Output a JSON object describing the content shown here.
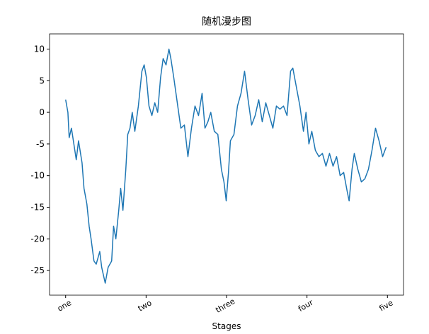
{
  "chart_data": {
    "type": "line",
    "title": "随机漫步图",
    "xlabel": "Stages",
    "x": [
      0,
      7,
      11,
      18,
      24,
      33,
      40,
      51,
      57,
      66,
      73,
      79,
      88,
      95,
      106,
      112,
      123,
      132,
      143,
      149,
      156,
      165,
      171,
      178,
      187,
      193,
      200,
      207,
      215,
      226,
      237,
      244,
      251,
      259,
      268,
      277,
      286,
      295,
      303,
      312,
      321,
      327,
      336,
      347,
      358,
      369,
      380,
      391,
      402,
      413,
      424,
      433,
      442,
      451,
      462,
      473,
      484,
      492,
      499,
      506,
      512,
      523,
      534,
      545,
      556,
      567,
      578,
      589,
      600,
      611,
      622,
      633,
      644,
      655,
      666,
      677,
      688,
      699,
      706,
      717,
      728,
      739,
      747,
      756,
      765,
      776,
      787,
      798,
      809,
      820,
      831,
      842,
      853,
      864,
      875,
      881,
      890,
      897,
      908,
      919,
      930,
      941,
      952,
      963,
      974,
      985,
      996
    ],
    "series": [
      {
        "color": "#1f77b4",
        "values": [
          2,
          0,
          -4,
          -2.5,
          -4.5,
          -7.5,
          -4.5,
          -8,
          -12,
          -14.5,
          -18,
          -20,
          -23.5,
          -24,
          -22,
          -24.5,
          -27,
          -24.5,
          -23.5,
          -18,
          -20,
          -15.5,
          -12,
          -15.5,
          -9,
          -3.5,
          -2.5,
          0,
          -3,
          1,
          6.5,
          7.5,
          5.5,
          1,
          -0.5,
          1.5,
          0,
          5.5,
          8.5,
          7.5,
          10,
          8.5,
          5.5,
          1.5,
          -2.5,
          -2,
          -7,
          -2.5,
          1,
          -0.5,
          3,
          -2.5,
          -1.5,
          0,
          -3,
          -3.5,
          -9,
          -11,
          -14,
          -9.5,
          -4.5,
          -3.5,
          1,
          3,
          6.5,
          2,
          -2,
          -0.5,
          2,
          -1.5,
          1.5,
          -0.5,
          -2.5,
          1,
          0.5,
          1,
          -0.5,
          6.5,
          7,
          4,
          1,
          -3,
          0,
          -5,
          -3,
          -6,
          -7,
          -6.5,
          -8.5,
          -6.5,
          -8.5,
          -7,
          -10,
          -9.5,
          -12.5,
          -14,
          -9,
          -6.5,
          -9,
          -11,
          -10.5,
          -9,
          -6,
          -2.5,
          -4.5,
          -7,
          -5.5
        ]
      }
    ],
    "xlim": [
      -50,
      1050
    ],
    "xticks": [
      {
        "value": 0,
        "label": "one"
      },
      {
        "value": 250,
        "label": "two"
      },
      {
        "value": 500,
        "label": "three"
      },
      {
        "value": 750,
        "label": "four"
      },
      {
        "value": 1000,
        "label": "five"
      }
    ],
    "ylim": [
      -28.9,
      12.4
    ],
    "yticks": [
      -25,
      -20,
      -15,
      -10,
      -5,
      0,
      5,
      10
    ]
  }
}
